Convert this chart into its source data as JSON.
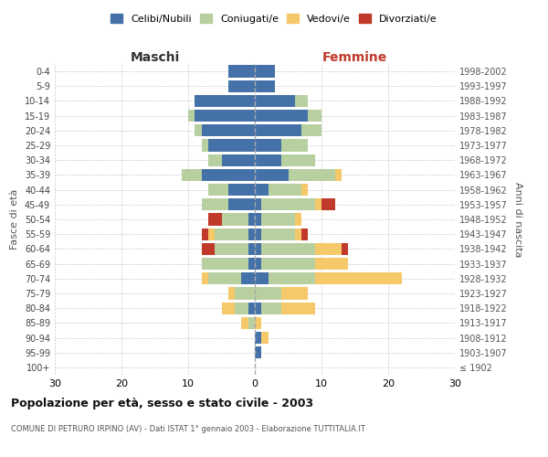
{
  "age_groups": [
    "100+",
    "95-99",
    "90-94",
    "85-89",
    "80-84",
    "75-79",
    "70-74",
    "65-69",
    "60-64",
    "55-59",
    "50-54",
    "45-49",
    "40-44",
    "35-39",
    "30-34",
    "25-29",
    "20-24",
    "15-19",
    "10-14",
    "5-9",
    "0-4"
  ],
  "birth_years": [
    "≤ 1902",
    "1903-1907",
    "1908-1912",
    "1913-1917",
    "1918-1922",
    "1923-1927",
    "1928-1932",
    "1933-1937",
    "1938-1942",
    "1943-1947",
    "1948-1952",
    "1953-1957",
    "1958-1962",
    "1963-1967",
    "1968-1972",
    "1973-1977",
    "1978-1982",
    "1983-1987",
    "1988-1992",
    "1993-1997",
    "1998-2002"
  ],
  "maschi": {
    "celibi": [
      0,
      0,
      0,
      0,
      1,
      0,
      2,
      1,
      1,
      1,
      1,
      4,
      4,
      8,
      5,
      7,
      8,
      9,
      9,
      4,
      4
    ],
    "coniugati": [
      0,
      0,
      0,
      1,
      2,
      3,
      5,
      7,
      5,
      5,
      4,
      4,
      3,
      3,
      2,
      1,
      1,
      1,
      0,
      0,
      0
    ],
    "vedovi": [
      0,
      0,
      0,
      1,
      2,
      1,
      1,
      0,
      0,
      1,
      0,
      0,
      0,
      0,
      0,
      0,
      0,
      0,
      0,
      0,
      0
    ],
    "divorziati": [
      0,
      0,
      0,
      0,
      0,
      0,
      0,
      0,
      2,
      1,
      2,
      0,
      0,
      0,
      0,
      0,
      0,
      0,
      0,
      0,
      0
    ]
  },
  "femmine": {
    "nubili": [
      0,
      1,
      1,
      0,
      1,
      0,
      2,
      1,
      1,
      1,
      1,
      1,
      2,
      5,
      4,
      4,
      7,
      8,
      6,
      3,
      3
    ],
    "coniugate": [
      0,
      0,
      0,
      0,
      3,
      4,
      7,
      8,
      8,
      5,
      5,
      8,
      5,
      7,
      5,
      4,
      3,
      2,
      2,
      0,
      0
    ],
    "vedove": [
      0,
      0,
      1,
      1,
      5,
      4,
      13,
      5,
      4,
      1,
      1,
      1,
      1,
      1,
      0,
      0,
      0,
      0,
      0,
      0,
      0
    ],
    "divorziate": [
      0,
      0,
      0,
      0,
      0,
      0,
      0,
      0,
      1,
      1,
      0,
      2,
      0,
      0,
      0,
      0,
      0,
      0,
      0,
      0,
      0
    ]
  },
  "colors": {
    "celibi": "#4472a8",
    "coniugati": "#b8cfa0",
    "vedovi": "#f5c96a",
    "divorziati": "#c0392b"
  },
  "title": "Popolazione per età, sesso e stato civile - 2003",
  "subtitle": "COMUNE DI PETRURO IRPINO (AV) - Dati ISTAT 1° gennaio 2003 - Elaborazione TUTTITALIA.IT",
  "ylabel_left": "Fasce di età",
  "ylabel_right": "Anni di nascita",
  "xlabel_left": "Maschi",
  "xlabel_right": "Femmine",
  "xlim": 30,
  "background_color": "#ffffff"
}
